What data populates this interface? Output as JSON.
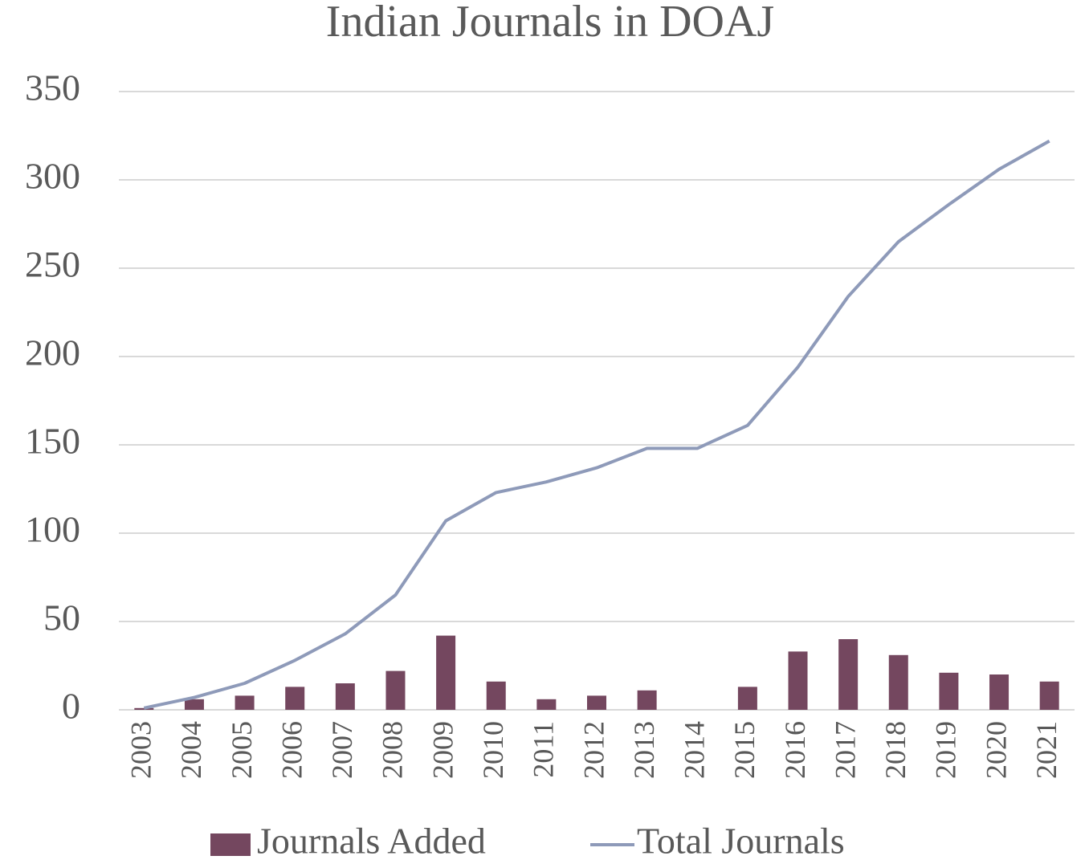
{
  "chart_data": {
    "type": "combo",
    "title": "Indian Journals in DOAJ",
    "categories": [
      "2003",
      "2004",
      "2005",
      "2006",
      "2007",
      "2008",
      "2009",
      "2010",
      "2011",
      "2012",
      "2013",
      "2014",
      "2015",
      "2016",
      "2017",
      "2018",
      "2019",
      "2020",
      "2021"
    ],
    "series": [
      {
        "name": "Journals Added",
        "type": "bar",
        "color": "#74475f",
        "values": [
          1,
          6,
          8,
          13,
          15,
          22,
          42,
          16,
          6,
          8,
          11,
          0,
          13,
          33,
          40,
          31,
          21,
          20,
          16
        ]
      },
      {
        "name": "Total Journals",
        "type": "line",
        "color": "#8e9ab9",
        "values": [
          1,
          7,
          15,
          28,
          43,
          65,
          107,
          123,
          129,
          137,
          148,
          148,
          161,
          194,
          234,
          265,
          286,
          306,
          322
        ]
      }
    ],
    "ylim": [
      0,
      350
    ],
    "yticks": [
      0,
      50,
      100,
      150,
      200,
      250,
      300,
      350
    ],
    "grid": true,
    "legend": "bottom"
  }
}
